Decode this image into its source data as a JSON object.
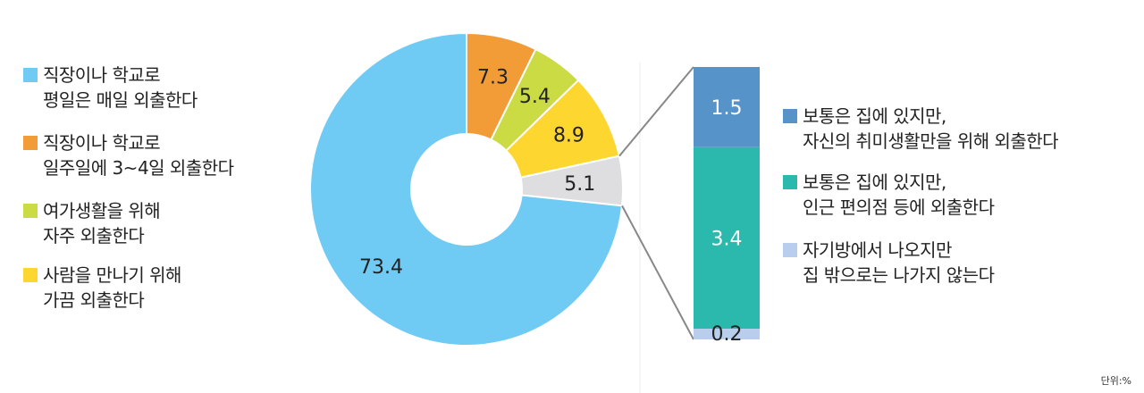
{
  "chart_data": {
    "type": "pie",
    "subtype": "donut-with-bar-of-pie",
    "unit": "단위:%",
    "slices": [
      {
        "label": "직장이나 학교로\n평일은 매일 외출한다",
        "value": 73.4,
        "color": "#6fcbf4"
      },
      {
        "label": "직장이나 학교로\n일주일에 3~4일 외출한다",
        "value": 7.3,
        "color": "#f29c38"
      },
      {
        "label": "여가생활을 위해\n자주 외출한다",
        "value": 5.4,
        "color": "#cadb44"
      },
      {
        "label": "사람을 만나기 위해\n가끔 외출한다",
        "value": 8.9,
        "color": "#fdd62f"
      },
      {
        "label": "(breakdown)",
        "value": 5.1,
        "color": "#dedee0"
      }
    ],
    "slice_order": [
      1,
      2,
      3,
      4,
      0
    ],
    "breakdown": [
      {
        "label": "보통은 집에 있지만,\n자신의 취미생활만을 위해 외출한다",
        "value": 1.5,
        "color": "#5693c9"
      },
      {
        "label": "보통은 집에 있지만,\n인근 편의점 등에 외출한다",
        "value": 3.4,
        "color": "#2bb9ad"
      },
      {
        "label": "자기방에서 나오지만\n집 밖으로는 나가지 않는다",
        "value": 0.2,
        "color": "#b9cdec"
      }
    ]
  }
}
